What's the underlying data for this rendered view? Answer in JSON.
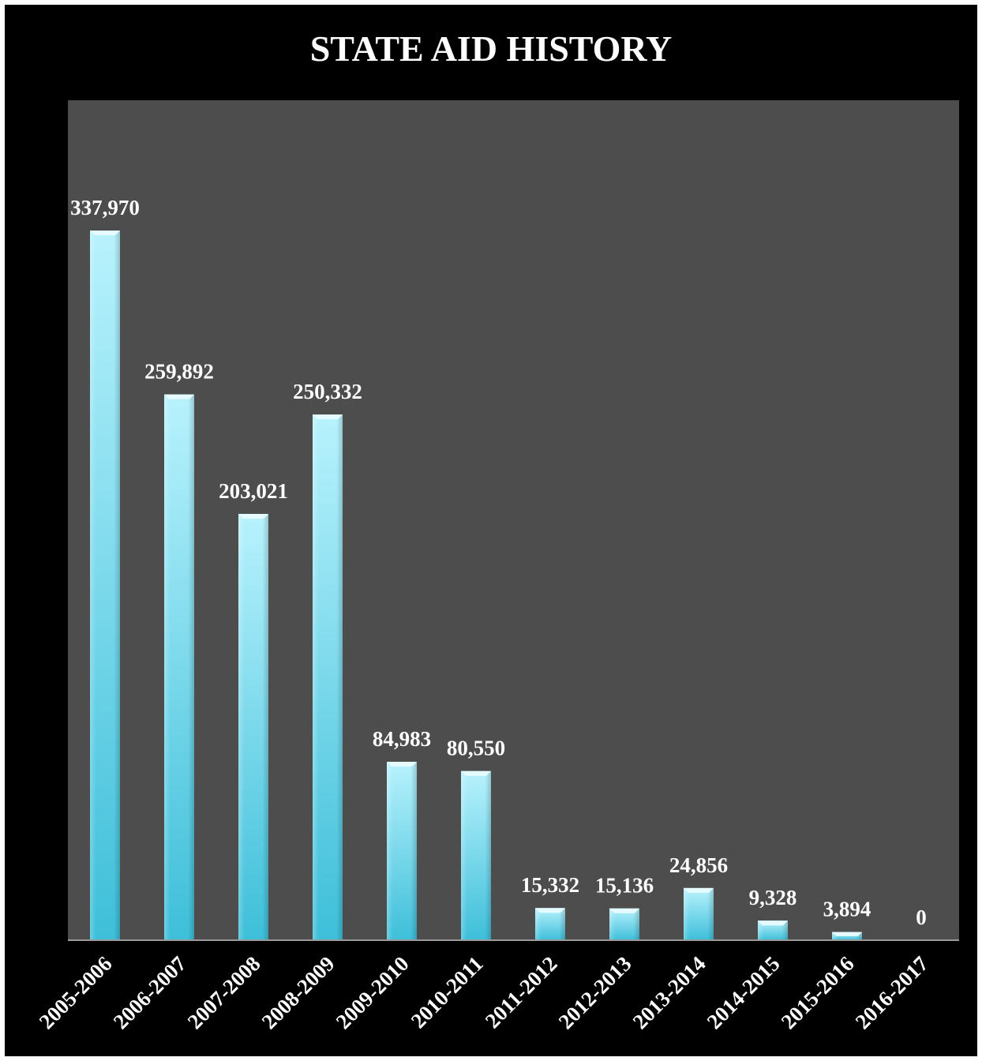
{
  "chart_data": {
    "type": "bar",
    "title": "STATE AID HISTORY",
    "xlabel": "",
    "ylabel": "",
    "categories": [
      "2005-2006",
      "2006-2007",
      "2007-2008",
      "2008-2009",
      "2009-2010",
      "2010-2011",
      "2011-2012",
      "2012-2013",
      "2013-2014",
      "2014-2015",
      "2015-2016",
      "2016-2017"
    ],
    "values": [
      337970,
      259892,
      203021,
      250332,
      84983,
      80550,
      15332,
      15136,
      24856,
      9328,
      3894,
      0
    ],
    "data_labels": [
      "337,970",
      "259,892",
      "203,021",
      "250,332",
      "84,983",
      "80,550",
      "15,332",
      "15,136",
      "24,856",
      "9,328",
      "3,894",
      "0"
    ],
    "ylim": [
      0,
      390000
    ],
    "grid": false,
    "legend": "none",
    "colors": {
      "background": "#000000",
      "plot_area": "#4d4d4d",
      "bar_light": "#aeeefc",
      "bar_dark": "#3fbfd9",
      "text": "#ffffff"
    }
  }
}
